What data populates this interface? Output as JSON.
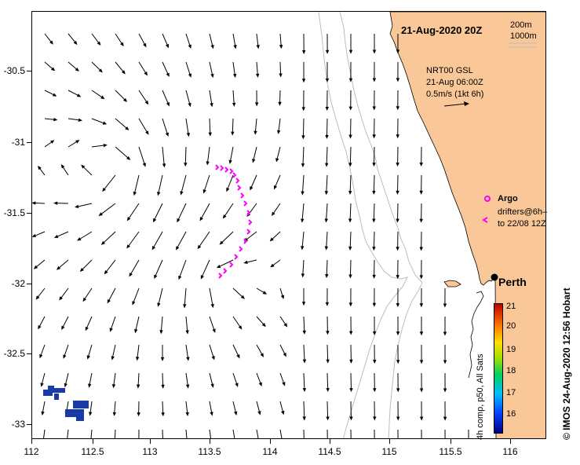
{
  "map": {
    "date_title": "21-Aug-2020 20Z",
    "depth_contours": [
      "200m",
      "1000m"
    ],
    "info_lines": [
      "NRT00 GSL",
      "21-Aug 06:00Z",
      "0.5m/s (1kt 6h)"
    ],
    "lat_ticks": [
      "-30.5",
      "-31",
      "-31.5",
      "-32",
      "-32.5",
      "-33"
    ],
    "lon_ticks": [
      "112",
      "112.5",
      "113",
      "113.5",
      "114",
      "114.5",
      "115",
      "115.5",
      "116"
    ],
    "lat_range": [
      -33.1,
      -30.1
    ],
    "lon_range": [
      112.0,
      116.3
    ],
    "perth": {
      "label": "Perth",
      "lon": 115.86,
      "lat": -31.95
    },
    "legend": {
      "argo": "Argo",
      "drifters_line1": "drifters@6h–",
      "drifters_line2": "to 22/08 12Z"
    },
    "colorbar": {
      "min": 16,
      "max": 21,
      "ticks": [
        "21",
        "20",
        "19",
        "18",
        "17",
        "16"
      ],
      "caption": "4h comp, p50, All Sats"
    },
    "credit": "© IMOS 24-Aug-2020 12:56 Hobart",
    "colors": {
      "land": "#fac898",
      "coast": "#000000",
      "contour": "#b8b8b8",
      "drifter": "#ff00ff",
      "sst_patch": "#1a3aa8"
    }
  }
}
